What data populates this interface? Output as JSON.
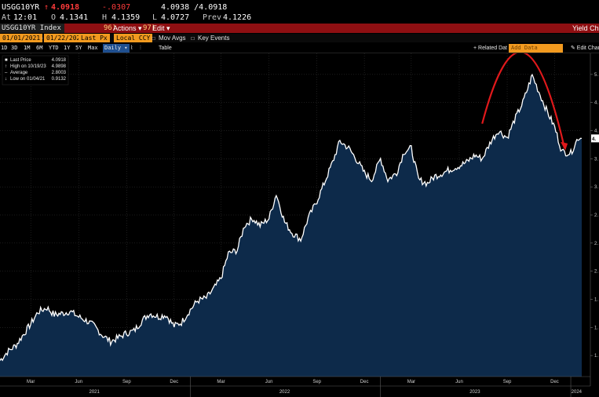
{
  "quote": {
    "ticker": "USGG10YR",
    "arrow": "↑",
    "last": "4.0918",
    "change": "-.0307",
    "bid_ask": "4.0938 /4.0918",
    "time_label": "At",
    "time": "12:01",
    "open_label": "O",
    "open": "4.1341",
    "high_label": "H",
    "high": "4.1359",
    "low_label": "L",
    "low": "4.0727",
    "prev_label": "Prev",
    "prev": "4.1226"
  },
  "titlebar": {
    "ticker": "USGG10YR Index",
    "actions_num": "96)",
    "actions": "Actions ▾",
    "edit_num": "97)",
    "edit": "Edit ▾",
    "right_title": "Yield Cha"
  },
  "datebar": {
    "start_date": "01/01/2021",
    "end_date": "01/22/2024",
    "price_field": "Last Px",
    "currency": "Local CCY",
    "mov_avgs": "Mov Avgs",
    "key_events": "Key Events"
  },
  "periodbar": {
    "periods": [
      "1D",
      "3D",
      "1M",
      "6M",
      "YTD",
      "1Y",
      "5Y",
      "Max"
    ],
    "frequency": "Daily ▾",
    "table": "Table",
    "related_date": "+ Related Dat",
    "add_data": "Add Data",
    "edit_chart": "✎ Edit Char"
  },
  "legend": [
    {
      "label": "Last Price",
      "value": "4.0918"
    },
    {
      "label": "High on 10/19/23",
      "value": "4.9898"
    },
    {
      "label": "Average",
      "value": "2.8003"
    },
    {
      "label": "Low on 01/04/21",
      "value": "0.9132"
    }
  ],
  "colors": {
    "line": "#ffffff",
    "area": "#0d2a4a",
    "arc": "#e0191b",
    "background": "#000000"
  },
  "chart_data": {
    "type": "area",
    "series": [
      {
        "name": "USGG10YR Index",
        "x": [
          "2021-01-01",
          "2021-01-15",
          "2021-02-01",
          "2021-02-15",
          "2021-03-01",
          "2021-03-15",
          "2021-04-01",
          "2021-04-15",
          "2021-05-01",
          "2021-05-15",
          "2021-06-01",
          "2021-06-15",
          "2021-07-01",
          "2021-07-15",
          "2021-08-01",
          "2021-08-15",
          "2021-09-01",
          "2021-09-15",
          "2021-10-01",
          "2021-10-15",
          "2021-11-01",
          "2021-11-15",
          "2021-12-01",
          "2021-12-15",
          "2022-01-01",
          "2022-01-15",
          "2022-02-01",
          "2022-02-15",
          "2022-03-01",
          "2022-03-15",
          "2022-04-01",
          "2022-04-15",
          "2022-05-01",
          "2022-05-15",
          "2022-06-01",
          "2022-06-15",
          "2022-07-01",
          "2022-07-15",
          "2022-08-01",
          "2022-08-15",
          "2022-09-01",
          "2022-09-15",
          "2022-10-01",
          "2022-10-15",
          "2022-11-01",
          "2022-11-15",
          "2022-12-01",
          "2022-12-15",
          "2023-01-01",
          "2023-01-15",
          "2023-02-01",
          "2023-02-15",
          "2023-03-01",
          "2023-03-15",
          "2023-04-01",
          "2023-04-15",
          "2023-05-01",
          "2023-05-15",
          "2023-06-01",
          "2023-06-15",
          "2023-07-01",
          "2023-07-15",
          "2023-08-01",
          "2023-08-15",
          "2023-09-01",
          "2023-09-15",
          "2023-10-01",
          "2023-10-15",
          "2023-10-19",
          "2023-11-01",
          "2023-11-15",
          "2023-12-01",
          "2023-12-15",
          "2024-01-01",
          "2024-01-15",
          "2024-01-22"
        ],
        "values": [
          0.93,
          1.05,
          1.15,
          1.3,
          1.45,
          1.62,
          1.68,
          1.58,
          1.6,
          1.63,
          1.55,
          1.5,
          1.42,
          1.3,
          1.2,
          1.25,
          1.32,
          1.35,
          1.5,
          1.6,
          1.55,
          1.58,
          1.42,
          1.47,
          1.65,
          1.78,
          1.82,
          1.95,
          2.1,
          2.45,
          2.5,
          2.85,
          2.95,
          2.85,
          2.95,
          3.3,
          2.9,
          2.75,
          2.65,
          2.95,
          3.2,
          3.45,
          3.75,
          4.05,
          3.95,
          3.8,
          3.6,
          3.5,
          3.8,
          3.5,
          3.6,
          3.9,
          3.95,
          3.5,
          3.45,
          3.55,
          3.6,
          3.65,
          3.7,
          3.75,
          3.85,
          3.8,
          4.05,
          4.2,
          4.1,
          4.35,
          4.6,
          4.9,
          4.99,
          4.75,
          4.5,
          4.25,
          3.9,
          3.88,
          4.1,
          4.09
        ]
      }
    ],
    "ytick_labels": [
      "1.",
      "1.",
      "1.",
      "2.",
      "2.",
      "2.",
      "3.",
      "3.",
      "4.",
      "4.",
      "5."
    ],
    "ylim": [
      0.7,
      5.3
    ],
    "xtick_labels": [
      {
        "label": "Mar",
        "date": "2021-03-01"
      },
      {
        "label": "Jun",
        "date": "2021-06-01"
      },
      {
        "label": "Sep",
        "date": "2021-09-01"
      },
      {
        "label": "Dec",
        "date": "2021-12-01"
      },
      {
        "label": "Mar",
        "date": "2022-03-01"
      },
      {
        "label": "Jun",
        "date": "2022-06-01"
      },
      {
        "label": "Sep",
        "date": "2022-09-01"
      },
      {
        "label": "Dec",
        "date": "2022-12-01"
      },
      {
        "label": "Mar",
        "date": "2023-03-01"
      },
      {
        "label": "Jun",
        "date": "2023-06-01"
      },
      {
        "label": "Sep",
        "date": "2023-09-01"
      },
      {
        "label": "Dec",
        "date": "2023-12-01"
      }
    ],
    "year_labels": [
      {
        "label": "2021",
        "date": "2021-07-01"
      },
      {
        "label": "2022",
        "date": "2022-07-01"
      },
      {
        "label": "2023",
        "date": "2023-07-01"
      },
      {
        "label": "2024",
        "date": "2024-01-12"
      }
    ],
    "last_value_tag": "4.",
    "grid": true,
    "legend_position": "top-left"
  }
}
